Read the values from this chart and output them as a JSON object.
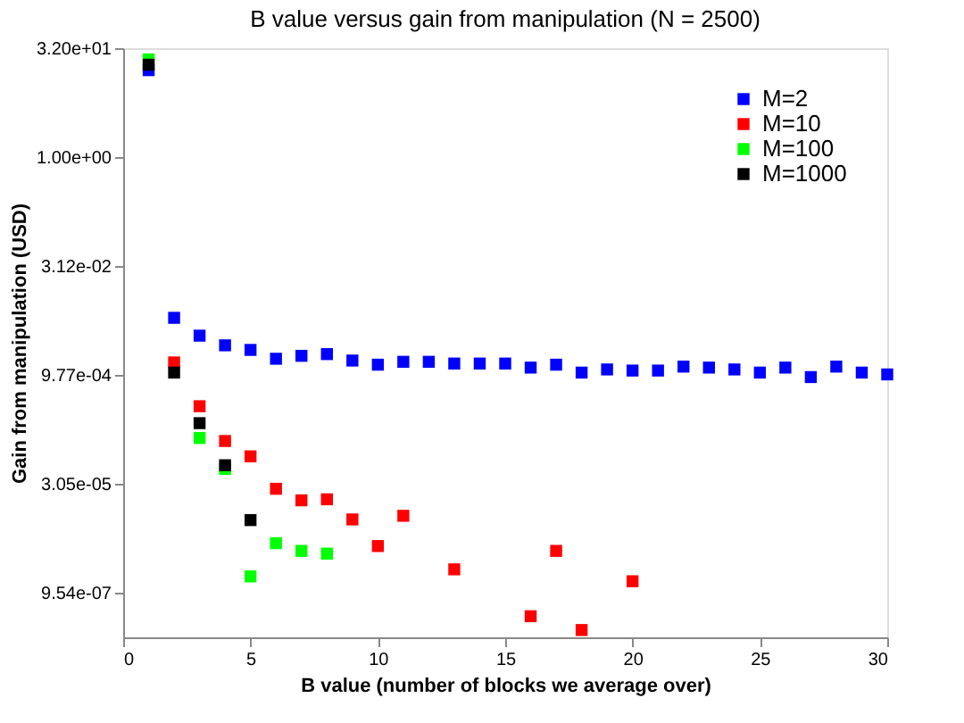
{
  "chart_data": {
    "type": "scatter",
    "title": "B value versus gain from manipulation (N = 2500)",
    "xlabel": "B value (number of blocks we average over)",
    "ylabel": "Gain from manipulation (USD)",
    "xlim": [
      0,
      30
    ],
    "xticks": [
      0,
      5,
      10,
      15,
      20,
      25,
      30
    ],
    "ylim": [
      2.3e-07,
      32
    ],
    "log": "y",
    "yticks": [
      {
        "value": 9.54e-07,
        "label": "9.54e-07"
      },
      {
        "value": 3.05e-05,
        "label": "3.05e-05"
      },
      {
        "value": 0.000977,
        "label": "9.77e-04"
      },
      {
        "value": 0.0312,
        "label": "3.12e-02"
      },
      {
        "value": 1,
        "label": "1.00e+00"
      },
      {
        "value": 32,
        "label": "3.20e+01"
      }
    ],
    "grid": false,
    "legend": "top right",
    "marker": "square",
    "series": [
      {
        "name": "M=2",
        "color": "#0000ff",
        "x": [
          1,
          2,
          3,
          4,
          5,
          6,
          7,
          8,
          9,
          10,
          11,
          12,
          13,
          14,
          15,
          16,
          17,
          18,
          19,
          20,
          21,
          22,
          23,
          24,
          25,
          26,
          27,
          28,
          29,
          30
        ],
        "values": [
          15.9,
          0.006,
          0.0034,
          0.0025,
          0.00216,
          0.00163,
          0.00179,
          0.00189,
          0.00154,
          0.00135,
          0.00148,
          0.00148,
          0.0014,
          0.0014,
          0.0014,
          0.00123,
          0.00135,
          0.00105,
          0.00116,
          0.00112,
          0.00112,
          0.00127,
          0.00123,
          0.00116,
          0.00105,
          0.00123,
          0.00091,
          0.00127,
          0.00105,
          0.00099
        ]
      },
      {
        "name": "M=10",
        "color": "#ff0000",
        "x": [
          2,
          3,
          4,
          5,
          6,
          7,
          8,
          9,
          10,
          11,
          13,
          16,
          17,
          18,
          20
        ],
        "values": [
          0.00145,
          0.00036,
          0.000119,
          7.3e-05,
          2.6e-05,
          1.8e-05,
          1.86e-05,
          9.8e-06,
          4.2e-06,
          1.1e-05,
          2e-06,
          4.5e-07,
          3.6e-06,
          2.9e-07,
          1.37e-06
        ]
      },
      {
        "name": "M=100",
        "color": "#00ff00",
        "x": [
          1,
          3,
          4,
          5,
          6,
          7,
          8
        ],
        "values": [
          22.4,
          0.000131,
          4.9e-05,
          1.6e-06,
          4.6e-06,
          3.6e-06,
          3.3e-06
        ]
      },
      {
        "name": "M=1000",
        "color": "#000000",
        "x": [
          1,
          2,
          3,
          4,
          5
        ],
        "values": [
          18.9,
          0.00105,
          0.00021,
          5.5e-05,
          9.6e-06
        ]
      }
    ]
  }
}
